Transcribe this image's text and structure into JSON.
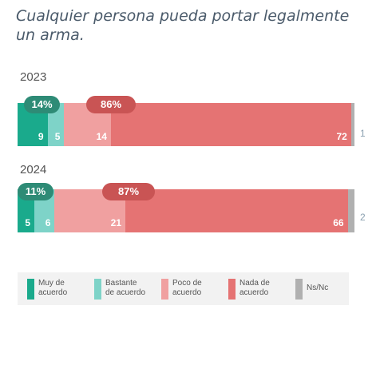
{
  "title": "Cualquier persona pueda portar legalmente un arma.",
  "chart_data": {
    "type": "bar",
    "orientation": "horizontal-stacked",
    "categories": [
      "2023",
      "2024"
    ],
    "series": [
      {
        "name": "Muy de acuerdo",
        "values": [
          9,
          5
        ],
        "color": "#1aaa8c"
      },
      {
        "name": "Bastante de acuerdo",
        "values": [
          5,
          6
        ],
        "color": "#7ed3c8"
      },
      {
        "name": "Poco de acuerdo",
        "values": [
          14,
          21
        ],
        "color": "#f0a0a0"
      },
      {
        "name": "Nada de acuerdo",
        "values": [
          72,
          66
        ],
        "color": "#e57373"
      },
      {
        "name": "Ns/Nc",
        "values": [
          1,
          2
        ],
        "color": "#b0b0b0"
      }
    ],
    "agree_totals": [
      "14%",
      "11%"
    ],
    "disagree_totals": [
      "86%",
      "87%"
    ],
    "agree_pill_color": "#2e8b76",
    "disagree_pill_color": "#c95454",
    "legend_placement": "bottom"
  },
  "legend": [
    {
      "label": "Muy de\nacuerdo",
      "color": "#1aaa8c"
    },
    {
      "label": "Bastante\nde acuerdo",
      "color": "#7ed3c8"
    },
    {
      "label": "Poco de\nacuerdo",
      "color": "#f0a0a0"
    },
    {
      "label": "Nada de\nacuerdo",
      "color": "#e57373"
    },
    {
      "label": "Ns/Nc",
      "color": "#b0b0b0"
    }
  ]
}
